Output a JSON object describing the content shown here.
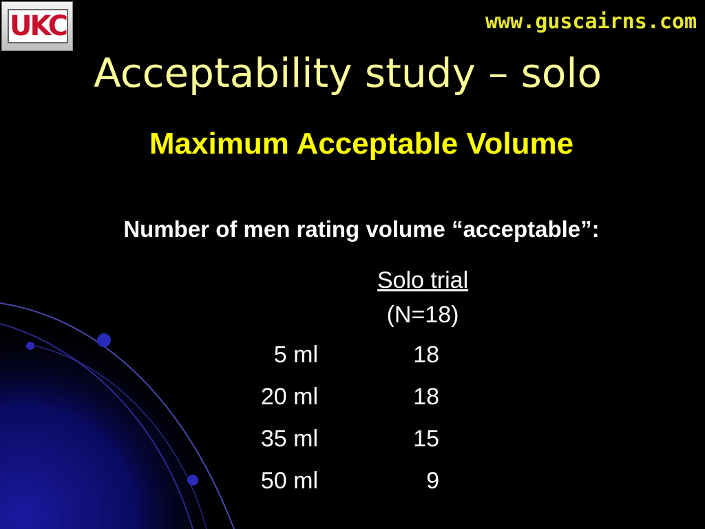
{
  "logo": "UKC",
  "url": "www.guscairns.com",
  "title": "Acceptability study – solo",
  "subtitle": "Maximum Acceptable Volume",
  "description": "Number of men rating volume “acceptable”:",
  "table": {
    "header": "Solo trial",
    "subheader": "(N=18)",
    "rows": [
      [
        "5 ml",
        18
      ],
      [
        "20 ml",
        18
      ],
      [
        "35 ml",
        15
      ],
      [
        "50 ml",
        9
      ]
    ]
  }
}
